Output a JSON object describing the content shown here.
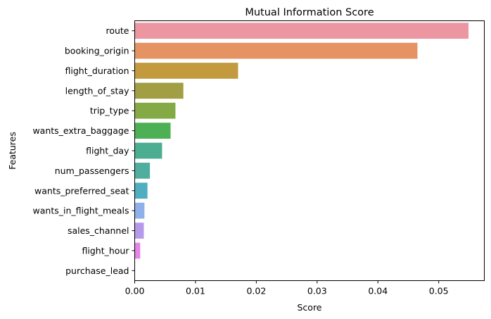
{
  "chart_data": {
    "type": "bar",
    "orientation": "horizontal",
    "title": "Mutual Information Score",
    "xlabel": "Score",
    "ylabel": "Features",
    "xlim": [
      0,
      0.0575
    ],
    "xticks": [
      0.0,
      0.01,
      0.02,
      0.03,
      0.04,
      0.05
    ],
    "xtick_labels": [
      "0.00",
      "0.01",
      "0.02",
      "0.03",
      "0.04",
      "0.05"
    ],
    "grid": false,
    "legend": "none",
    "categories": [
      "route",
      "booking_origin",
      "flight_duration",
      "length_of_stay",
      "trip_type",
      "wants_extra_baggage",
      "flight_day",
      "num_passengers",
      "wants_preferred_seat",
      "wants_in_flight_meals",
      "sales_channel",
      "flight_hour",
      "purchase_lead"
    ],
    "values": [
      0.0549,
      0.0465,
      0.017,
      0.008,
      0.0067,
      0.0059,
      0.0045,
      0.0025,
      0.0021,
      0.0016,
      0.0015,
      0.0009,
      0.0
    ],
    "colors": [
      "#ec96a2",
      "#e59362",
      "#c49a3f",
      "#a19e43",
      "#84aa46",
      "#4eb054",
      "#4cad90",
      "#4fae9d",
      "#4faebf",
      "#8fb0e8",
      "#b69aea",
      "#e683e9",
      "#e888c8"
    ]
  }
}
